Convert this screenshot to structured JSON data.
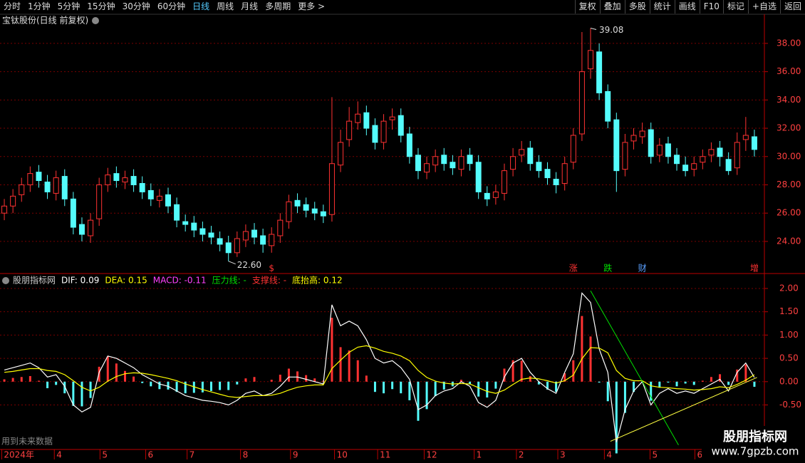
{
  "toolbar": {
    "left": [
      "分时",
      "1分钟",
      "5分钟",
      "15分钟",
      "30分钟",
      "60分钟",
      "日线",
      "周线",
      "月线",
      "多周期",
      "更多 >"
    ],
    "active": 6,
    "right": [
      "复权",
      "叠加",
      "多股",
      "统计",
      "画线",
      "F10",
      "标记",
      "+自选",
      "返回"
    ]
  },
  "chart_data": [
    {
      "type": "candlestick",
      "title": "宝钛股份(日线 前复权)",
      "up_color": "#ff3232",
      "down_color": "#54fcfc",
      "grid": true,
      "ylim": [
        21.78,
        40.06
      ],
      "yticks": [
        {
          "value": 24,
          "label": "24.00"
        },
        {
          "value": 26,
          "label": "26.00"
        },
        {
          "value": 28,
          "label": "28.00"
        },
        {
          "value": 30,
          "label": "30.00"
        },
        {
          "value": 32,
          "label": "32.00"
        },
        {
          "value": 34,
          "label": "34.00"
        },
        {
          "value": 36,
          "label": "36.00"
        },
        {
          "value": 38,
          "label": "38.00"
        }
      ],
      "open": [
        26.0,
        26.5,
        27.3,
        28.0,
        28.9,
        28.2,
        27.4,
        28.6,
        27.0,
        25.2,
        24.4,
        25.6,
        28.0,
        28.8,
        28.2,
        28.6,
        28.1,
        27.6,
        26.9,
        27.3,
        26.6,
        25.4,
        25.3,
        24.9,
        24.6,
        24.2,
        23.9,
        23.2,
        24.1,
        24.8,
        24.4,
        23.7,
        24.4,
        25.4,
        26.9,
        26.6,
        26.3,
        26.1,
        25.9,
        29.4,
        31.2,
        32.4,
        33.1,
        32.2,
        31.0,
        32.6,
        32.9,
        31.6,
        30.1,
        28.9,
        29.4,
        30.1,
        29.6,
        29.1,
        30.1,
        29.6,
        27.4,
        27.1,
        27.4,
        29.1,
        30.1,
        30.6,
        29.6,
        29.1,
        28.4,
        28.1,
        29.6,
        31.6,
        36.2,
        37.4,
        34.6,
        32.6,
        29.1,
        31.1,
        31.4,
        31.9,
        30.1,
        30.9,
        30.1,
        29.4,
        29.1,
        29.6,
        30.1,
        30.6,
        29.8,
        29.2,
        31.2,
        31.4
      ],
      "high": [
        27.0,
        27.7,
        28.5,
        29.3,
        29.4,
        28.7,
        29.0,
        29.1,
        27.5,
        25.7,
        26.0,
        28.5,
        29.2,
        29.3,
        29.0,
        29.1,
        28.6,
        28.1,
        27.7,
        27.8,
        27.1,
        25.9,
        25.8,
        25.4,
        25.1,
        24.7,
        24.4,
        24.7,
        25.2,
        25.3,
        24.9,
        25.0,
        26.0,
        27.3,
        27.4,
        27.1,
        26.8,
        26.6,
        34.2,
        31.9,
        33.5,
        33.9,
        33.6,
        32.7,
        33.0,
        33.4,
        33.4,
        32.1,
        30.6,
        30.0,
        30.5,
        30.6,
        30.1,
        30.5,
        30.6,
        30.1,
        27.9,
        28.0,
        29.5,
        30.6,
        31.1,
        31.1,
        30.1,
        29.6,
        28.9,
        30.0,
        32.0,
        38.8,
        39.08,
        38.0,
        35.1,
        33.1,
        31.6,
        32.0,
        32.4,
        32.4,
        31.3,
        31.4,
        30.6,
        30.0,
        30.0,
        30.5,
        31.0,
        31.1,
        30.3,
        31.7,
        32.8,
        31.9
      ],
      "low": [
        25.5,
        26.0,
        26.8,
        27.5,
        27.8,
        27.0,
        26.9,
        26.5,
        24.5,
        24.0,
        23.9,
        25.1,
        27.5,
        27.8,
        27.7,
        27.5,
        27.0,
        26.5,
        26.4,
        26.0,
        25.0,
        24.7,
        24.3,
        24.0,
        23.8,
        23.3,
        22.6,
        22.9,
        23.6,
        23.8,
        23.2,
        23.2,
        23.9,
        24.9,
        26.0,
        25.7,
        25.5,
        25.3,
        25.4,
        28.9,
        30.7,
        31.9,
        31.5,
        30.5,
        30.5,
        31.9,
        31.0,
        29.5,
        28.4,
        28.4,
        28.9,
        29.0,
        28.7,
        28.6,
        29.0,
        27.0,
        26.5,
        26.6,
        26.9,
        28.6,
        29.6,
        29.0,
        28.5,
        28.0,
        27.4,
        27.6,
        29.1,
        31.1,
        35.5,
        34.0,
        32.0,
        27.5,
        28.6,
        30.5,
        30.9,
        29.5,
        29.6,
        29.5,
        29.0,
        28.6,
        28.6,
        29.1,
        29.6,
        29.3,
        28.7,
        28.7,
        30.4,
        30.0
      ],
      "close": [
        26.5,
        27.2,
        28.0,
        28.8,
        28.3,
        27.5,
        28.5,
        27.0,
        25.0,
        24.5,
        25.5,
        28.0,
        28.7,
        28.3,
        28.5,
        28.0,
        27.5,
        27.0,
        27.2,
        26.5,
        25.5,
        25.2,
        24.8,
        24.5,
        24.3,
        23.8,
        23.2,
        24.2,
        24.7,
        24.3,
        23.8,
        24.5,
        25.5,
        26.8,
        26.5,
        26.2,
        26.0,
        25.8,
        29.5,
        31.0,
        32.5,
        33.0,
        32.0,
        31.0,
        32.5,
        32.8,
        31.5,
        30.0,
        29.0,
        29.5,
        30.0,
        29.5,
        29.2,
        30.0,
        29.5,
        27.5,
        27.0,
        27.5,
        29.0,
        30.0,
        30.5,
        29.5,
        29.0,
        28.5,
        28.0,
        29.5,
        31.5,
        36.0,
        37.5,
        34.5,
        32.5,
        29.0,
        31.0,
        31.5,
        31.8,
        30.0,
        30.8,
        30.0,
        29.5,
        29.0,
        29.5,
        30.0,
        30.5,
        30.0,
        29.0,
        31.0,
        31.5,
        30.5
      ],
      "high_mark": {
        "index": 68,
        "value": 39.08
      },
      "low_mark": {
        "index": 26,
        "value": 22.6,
        "label": "22.60"
      },
      "events": [
        {
          "label": "$",
          "index": 31,
          "color": "#ff3232"
        },
        {
          "label": "涨",
          "index": 66,
          "color": "#ff3232"
        },
        {
          "label": "跌",
          "index": 70,
          "color": "#00e000"
        },
        {
          "label": "财",
          "index": 74,
          "color": "#5aa0ff"
        },
        {
          "label": "增",
          "index": 87,
          "color": "#ff3232"
        }
      ]
    },
    {
      "type": "macd",
      "legend": [
        {
          "text": "股朋指标网",
          "color": "#cccccc"
        },
        {
          "text": "DIF: 0.09",
          "color": "#ffffff"
        },
        {
          "text": "DEA: 0.15",
          "color": "#ffff00"
        },
        {
          "text": "MACD: -0.11",
          "color": "#ff40ff"
        },
        {
          "text": "压力线: -",
          "color": "#00e000"
        },
        {
          "text": "支撑线: -",
          "color": "#ff3232"
        },
        {
          "text": "底抬高: 0.12",
          "color": "#ffff00"
        }
      ],
      "ylim": [
        -1.44,
        2.29
      ],
      "grid": true,
      "yticks": [
        {
          "value": 2,
          "label": "2.00"
        },
        {
          "value": 1.5,
          "label": "1.50"
        },
        {
          "value": 1,
          "label": "1.00"
        },
        {
          "value": 0.5,
          "label": "0.50"
        },
        {
          "value": 0,
          "label": "0.00"
        },
        {
          "value": -0.5,
          "label": "-0.50"
        }
      ],
      "xlim": [
        -0.5,
        87.5
      ],
      "xticks": [
        {
          "value": -0.3,
          "label": "2024年"
        },
        {
          "value": 5.8,
          "label": "4"
        },
        {
          "value": 11.1,
          "label": "5"
        },
        {
          "value": 16.4,
          "label": "6"
        },
        {
          "value": 21.2,
          "label": "7"
        },
        {
          "value": 27.4,
          "label": "8"
        },
        {
          "value": 33.2,
          "label": "9"
        },
        {
          "value": 38.3,
          "label": "10"
        },
        {
          "value": 43.3,
          "label": "11"
        },
        {
          "value": 48.7,
          "label": "12"
        },
        {
          "value": 54.5,
          "label": "1"
        },
        {
          "value": 59.4,
          "label": "2"
        },
        {
          "value": 64.2,
          "label": "3"
        },
        {
          "value": 69.6,
          "label": "4"
        },
        {
          "value": 74.9,
          "label": "5"
        },
        {
          "value": 80.1,
          "label": "6"
        }
      ],
      "series": [
        {
          "name": "DIF",
          "color": "#ffffff",
          "values": [
            0.25,
            0.3,
            0.35,
            0.4,
            0.3,
            0.1,
            0.15,
            -0.1,
            -0.5,
            -0.65,
            -0.55,
            0.2,
            0.55,
            0.5,
            0.4,
            0.3,
            0.15,
            0.05,
            -0.05,
            -0.1,
            -0.2,
            -0.3,
            -0.35,
            -0.4,
            -0.42,
            -0.45,
            -0.5,
            -0.4,
            -0.25,
            -0.2,
            -0.3,
            -0.25,
            -0.1,
            0.1,
            0.1,
            0.05,
            0.0,
            -0.05,
            1.65,
            1.2,
            1.3,
            1.2,
            0.9,
            0.5,
            0.4,
            0.45,
            0.3,
            0.05,
            -0.6,
            -0.5,
            -0.3,
            -0.2,
            -0.15,
            0.0,
            -0.1,
            -0.45,
            -0.55,
            -0.4,
            0.1,
            0.4,
            0.5,
            0.2,
            0.0,
            -0.15,
            -0.25,
            0.2,
            0.6,
            1.9,
            1.7,
            0.7,
            0.2,
            -1.3,
            -0.6,
            -0.2,
            0.0,
            -0.5,
            -0.25,
            -0.15,
            -0.25,
            -0.2,
            -0.25,
            -0.15,
            -0.05,
            0.05,
            -0.2,
            0.2,
            0.4,
            0.09
          ]
        },
        {
          "name": "DEA",
          "color": "#ffff00",
          "values": [
            0.2,
            0.22,
            0.25,
            0.28,
            0.28,
            0.24,
            0.22,
            0.15,
            0.02,
            -0.12,
            -0.2,
            -0.12,
            0.01,
            0.11,
            0.17,
            0.19,
            0.18,
            0.15,
            0.11,
            0.07,
            0.02,
            -0.05,
            -0.11,
            -0.17,
            -0.22,
            -0.27,
            -0.32,
            -0.34,
            -0.32,
            -0.3,
            -0.3,
            -0.29,
            -0.25,
            -0.18,
            -0.12,
            -0.09,
            -0.07,
            -0.07,
            0.28,
            0.46,
            0.63,
            0.74,
            0.77,
            0.72,
            0.65,
            0.61,
            0.55,
            0.45,
            0.24,
            0.09,
            0.01,
            -0.03,
            -0.05,
            -0.04,
            -0.05,
            -0.13,
            -0.21,
            -0.25,
            -0.18,
            -0.06,
            0.05,
            0.08,
            0.06,
            0.02,
            -0.03,
            0.02,
            0.14,
            0.49,
            0.73,
            0.72,
            0.62,
            0.24,
            0.07,
            0.02,
            0.02,
            -0.09,
            -0.12,
            -0.13,
            -0.15,
            -0.16,
            -0.18,
            -0.17,
            -0.15,
            -0.11,
            -0.13,
            -0.06,
            0.03,
            0.15
          ]
        },
        {
          "name": "MACD",
          "up_color": "#ff3232",
          "down_color": "#54fcfc",
          "values": [
            0.05,
            0.08,
            0.1,
            0.12,
            0.02,
            -0.14,
            -0.07,
            -0.25,
            -0.52,
            -0.53,
            -0.35,
            0.32,
            0.54,
            0.39,
            0.23,
            0.11,
            -0.03,
            -0.1,
            -0.16,
            -0.17,
            -0.22,
            -0.25,
            -0.24,
            -0.23,
            -0.2,
            -0.18,
            -0.18,
            -0.06,
            0.07,
            0.1,
            0,
            0.04,
            0.15,
            0.28,
            0.22,
            0.14,
            0.07,
            0.02,
            1.37,
            0.74,
            0.67,
            0.46,
            0.13,
            -0.22,
            -0.25,
            -0.16,
            -0.25,
            -0.4,
            -0.84,
            -0.59,
            -0.31,
            -0.17,
            -0.1,
            0.04,
            -0.05,
            -0.32,
            -0.34,
            -0.15,
            0.28,
            0.46,
            0.45,
            0.12,
            -0.06,
            -0.17,
            -0.22,
            0.18,
            0.46,
            1.41,
            0.97,
            -0.02,
            -0.42,
            -1.54,
            -0.67,
            -0.22,
            -0.02,
            -0.41,
            -0.13,
            -0.02,
            -0.1,
            -0.04,
            -0.07,
            0.02,
            0.1,
            0.16,
            -0.07,
            0.26,
            0.37,
            -0.11
          ]
        }
      ],
      "trend_lines": [
        {
          "color": "#00e000",
          "x": [
            68,
            78.2
          ],
          "y": [
            1.95,
            -1.36
          ]
        },
        {
          "color": "#ffff40",
          "x": [
            70.3,
            87.3
          ],
          "y": [
            -1.28,
            0.09
          ]
        }
      ]
    }
  ],
  "note": "用到未来数据",
  "watermark": {
    "title": "股朋指标网",
    "url": "www.7gpzb.com"
  }
}
